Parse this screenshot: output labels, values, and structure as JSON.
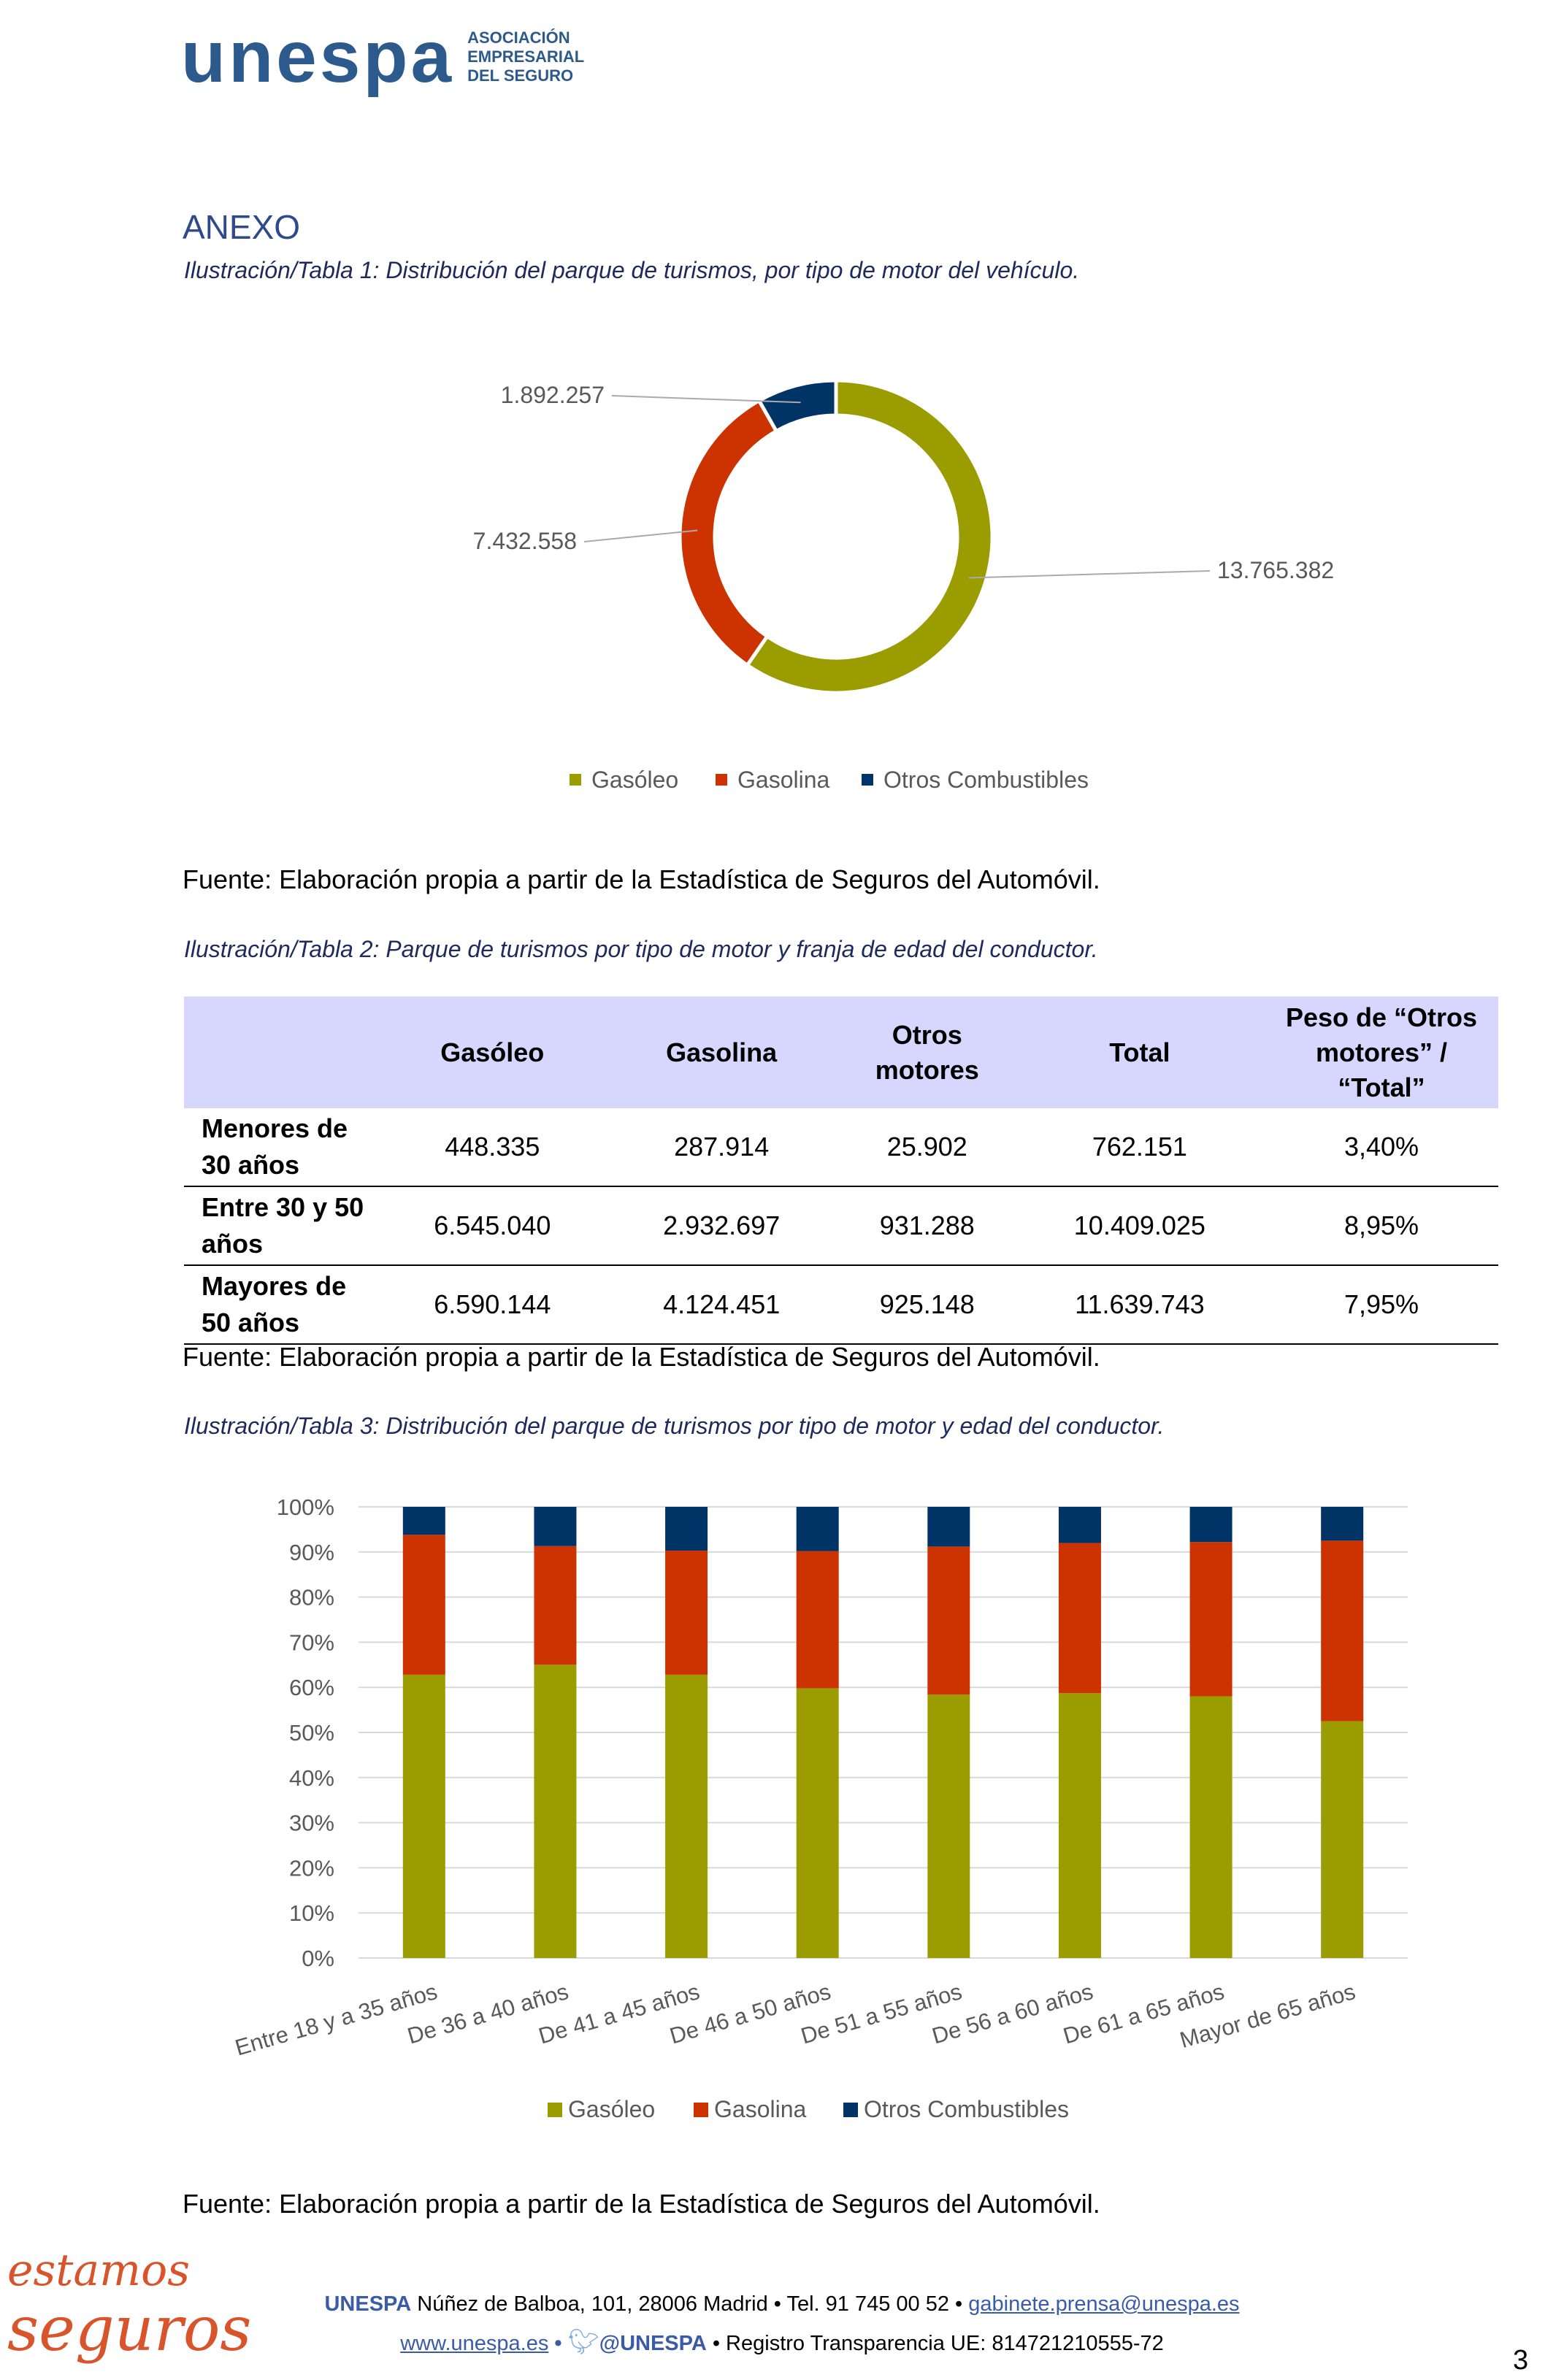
{
  "header": {
    "logo_word": "unespa",
    "logo_sub": [
      "ASOCIACIÓN",
      "EMPRESARIAL",
      "DEL SEGURO"
    ]
  },
  "section_title": "ANEXO",
  "caption1": "Ilustración/Tabla 1: Distribución del parque de turismos, por tipo de motor del vehículo.",
  "caption2": "Ilustración/Tabla 2: Parque de turismos por tipo de motor y franja de edad del conductor.",
  "caption3": "Ilustración/Tabla 3: Distribución del parque de turismos por tipo de motor y edad del conductor.",
  "source": "Fuente: Elaboración propia a partir de la Estadística de Seguros del Automóvil.",
  "colors": {
    "gasoleo": "#9a9c00",
    "gasolina": "#cc3300",
    "otros": "#003366"
  },
  "chart_data": [
    {
      "type": "pie",
      "variant": "donut",
      "categories": [
        "Gasóleo",
        "Gasolina",
        "Otros Combustibles"
      ],
      "values": [
        13765382,
        7432558,
        1892257
      ],
      "labels": [
        "13.765.382",
        "7.432.558",
        "1.892.257"
      ],
      "legend": "bottom"
    },
    {
      "type": "bar",
      "stacked": "percent",
      "categories": [
        "Entre 18 y a 35 años",
        "De 36 a 40 años",
        "De 41 a 45 años",
        "De 46 a 50 años",
        "De 51 a 55 años",
        "De 56 a 60 años",
        "De 61 a 65 años",
        "Mayor de 65 años"
      ],
      "series": [
        {
          "name": "Gasóleo",
          "values": [
            62.8,
            65.0,
            62.8,
            59.8,
            58.4,
            58.7,
            58.0,
            52.5
          ]
        },
        {
          "name": "Gasolina",
          "values": [
            31.0,
            26.3,
            27.5,
            30.4,
            32.8,
            33.3,
            34.2,
            40.0
          ]
        },
        {
          "name": "Otros Combustibles",
          "values": [
            6.2,
            8.7,
            9.7,
            9.8,
            8.8,
            8.0,
            7.8,
            7.5
          ]
        }
      ],
      "ylim": [
        0,
        100
      ],
      "yticks": [
        "0%",
        "10%",
        "20%",
        "30%",
        "40%",
        "50%",
        "60%",
        "70%",
        "80%",
        "90%",
        "100%"
      ],
      "grid": true,
      "legend": "bottom"
    }
  ],
  "table": {
    "headers": [
      "",
      "Gasóleo",
      "Gasolina",
      "Otros motores",
      "Total",
      "Peso de “Otros motores” / “Total”"
    ],
    "rows": [
      [
        "Menores de 30 años",
        "448.335",
        "287.914",
        "25.902",
        "762.151",
        "3,40%"
      ],
      [
        "Entre 30 y 50 años",
        "6.545.040",
        "2.932.697",
        "931.288",
        "10.409.025",
        "8,95%"
      ],
      [
        "Mayores de 50 años",
        "6.590.144",
        "4.124.451",
        "925.148",
        "11.639.743",
        "7,95%"
      ]
    ]
  },
  "footer": {
    "brand": "UNESPA",
    "address": " Núñez de Balboa, 101, 28006 Madrid • Tel. 91 745 00 52 • ",
    "email": "gabinete.prensa@unespa.es",
    "web": "www.unespa.es",
    "twitter": "@UNESPA",
    "registry": " • Registro Transparencia UE: 814721210555-72",
    "sep": " • ",
    "slogan": "estamos seguros",
    "page": "3"
  }
}
